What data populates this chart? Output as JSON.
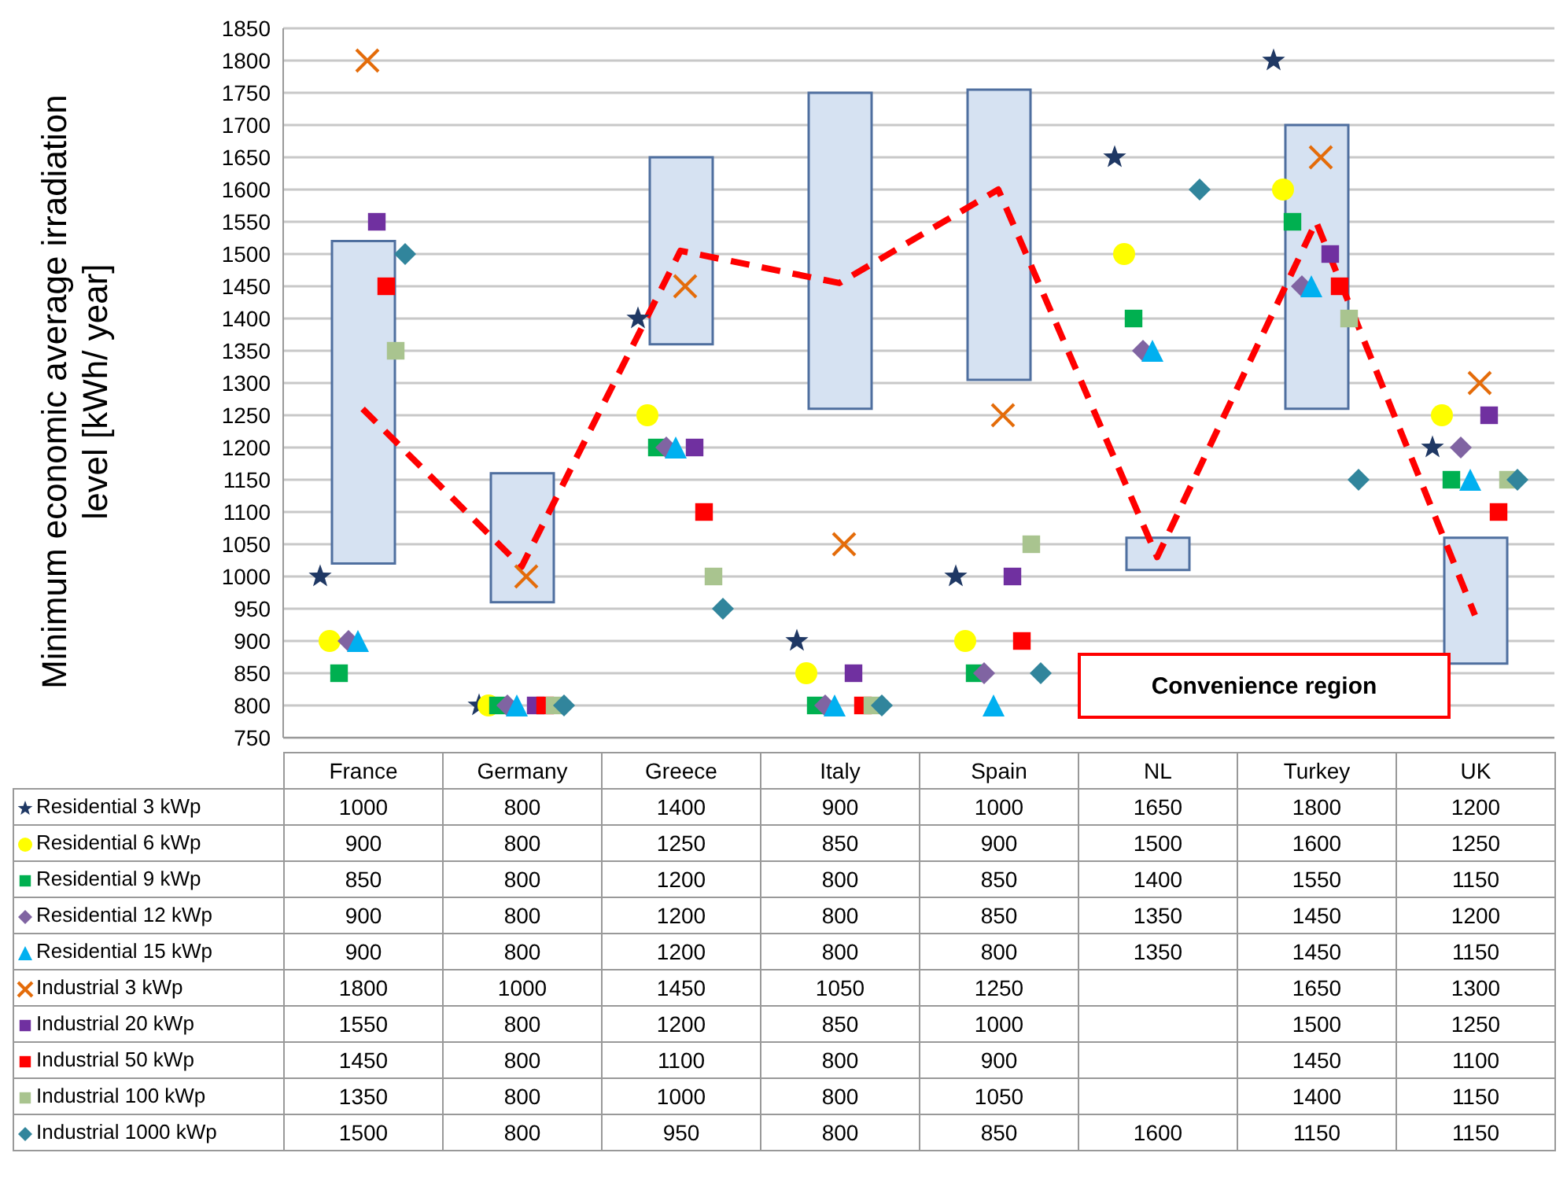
{
  "chart_data": {
    "type": "scatter",
    "ylabel": "Minimum economic average irradiation level [kWh/ year]",
    "categories": [
      "France",
      "Germany",
      "Greece",
      "Italy",
      "Spain",
      "NL",
      "Turkey",
      "UK"
    ],
    "ylim": [
      750,
      1850
    ],
    "yticks": [
      750,
      800,
      850,
      900,
      950,
      1000,
      1050,
      1100,
      1150,
      1200,
      1250,
      1300,
      1350,
      1400,
      1450,
      1500,
      1550,
      1600,
      1650,
      1700,
      1750,
      1800,
      1850
    ],
    "grid": "y",
    "legend": "bottom",
    "annotations": [
      "Convenience region"
    ],
    "series": [
      {
        "type": "bar",
        "color": "#d6e2f2",
        "base": [
          1020,
          960,
          1360,
          1260,
          1305,
          1010,
          1260,
          865
        ],
        "values": [
          500,
          200,
          290,
          490,
          450,
          50,
          440,
          195
        ]
      },
      {
        "type": "line",
        "color": "#ff0000",
        "line_style": "dashed",
        "marker": "none",
        "values": [
          1260,
          1015,
          1505,
          1455,
          1600,
          1030,
          1550,
          940
        ]
      },
      {
        "name": "Residential 3 kWp",
        "color": "#1f3864",
        "marker": "star",
        "values": [
          1000,
          800,
          1400,
          900,
          1000,
          1650,
          1800,
          1200
        ],
        "value_labels": [
          "1000",
          "800",
          "1400",
          "900",
          "1000",
          "1650",
          "1800",
          "1200"
        ]
      },
      {
        "name": "Residential 6 kWp",
        "color": "#ffff00",
        "marker": "circle",
        "values": [
          900,
          800,
          1250,
          850,
          900,
          1500,
          1600,
          1250
        ],
        "value_labels": [
          "900",
          "800",
          "1250",
          "850",
          "900",
          "1500",
          "1600",
          "1250"
        ]
      },
      {
        "name": "Residential 9 kWp",
        "color": "#00b050",
        "marker": "square",
        "values": [
          850,
          800,
          1200,
          800,
          850,
          1400,
          1550,
          1150
        ],
        "value_labels": [
          "850",
          "800",
          "1200",
          "800",
          "850",
          "1400",
          "1550",
          "1150"
        ]
      },
      {
        "name": "Residential 12 kWp",
        "color": "#8064a2",
        "marker": "diamond",
        "values": [
          900,
          800,
          1200,
          800,
          850,
          1350,
          1450,
          1200
        ],
        "value_labels": [
          "900",
          "800",
          "1200",
          "800",
          "850",
          "1350",
          "1450",
          "1200"
        ]
      },
      {
        "name": "Residential 15 kWp",
        "color": "#00b0f0",
        "marker": "triangle",
        "values": [
          900,
          800,
          1200,
          800,
          800,
          1350,
          1450,
          1150
        ],
        "value_labels": [
          "900",
          "800",
          "1200",
          "800",
          "800",
          "1350",
          "1450",
          "1150"
        ]
      },
      {
        "name": "Industrial 3 kWp",
        "color": "#e46c0a",
        "marker": "cross",
        "values": [
          1800,
          1000,
          1450,
          1050,
          1250,
          null,
          1650,
          1300
        ],
        "value_labels": [
          "1800",
          "1000",
          "1450",
          "1050",
          "1250",
          null,
          "1650",
          "1300"
        ]
      },
      {
        "name": "Industrial 20 kWp",
        "color": "#7030a0",
        "marker": "square",
        "values": [
          1550,
          800,
          1200,
          850,
          1000,
          null,
          1500,
          1250
        ],
        "value_labels": [
          "1550",
          "800",
          "1200",
          "850",
          "1000",
          null,
          "1500",
          "1250"
        ]
      },
      {
        "name": "Industrial 50 kWp",
        "color": "#ff0000",
        "marker": "square",
        "values": [
          1450,
          800,
          1100,
          800,
          900,
          null,
          1450,
          1100
        ],
        "value_labels": [
          "1450",
          "800",
          "1100",
          "800",
          "900",
          null,
          "1450",
          "1100"
        ]
      },
      {
        "name": "Industrial 100 kWp",
        "color": "#a9c48f",
        "marker": "square",
        "values": [
          1350,
          800,
          1000,
          800,
          1050,
          null,
          1400,
          1150
        ],
        "value_labels": [
          "1350",
          "800",
          "1000",
          "800",
          "1050",
          null,
          "1400",
          "1150"
        ]
      },
      {
        "name": "Industrial 1000 kWp",
        "color": "#31859c",
        "marker": "diamond",
        "values": [
          1500,
          800,
          950,
          800,
          850,
          1600,
          1150,
          1150
        ],
        "value_labels": [
          "1500",
          "800",
          "950",
          "800",
          "850",
          "1600",
          "1150",
          "1150"
        ]
      }
    ]
  }
}
